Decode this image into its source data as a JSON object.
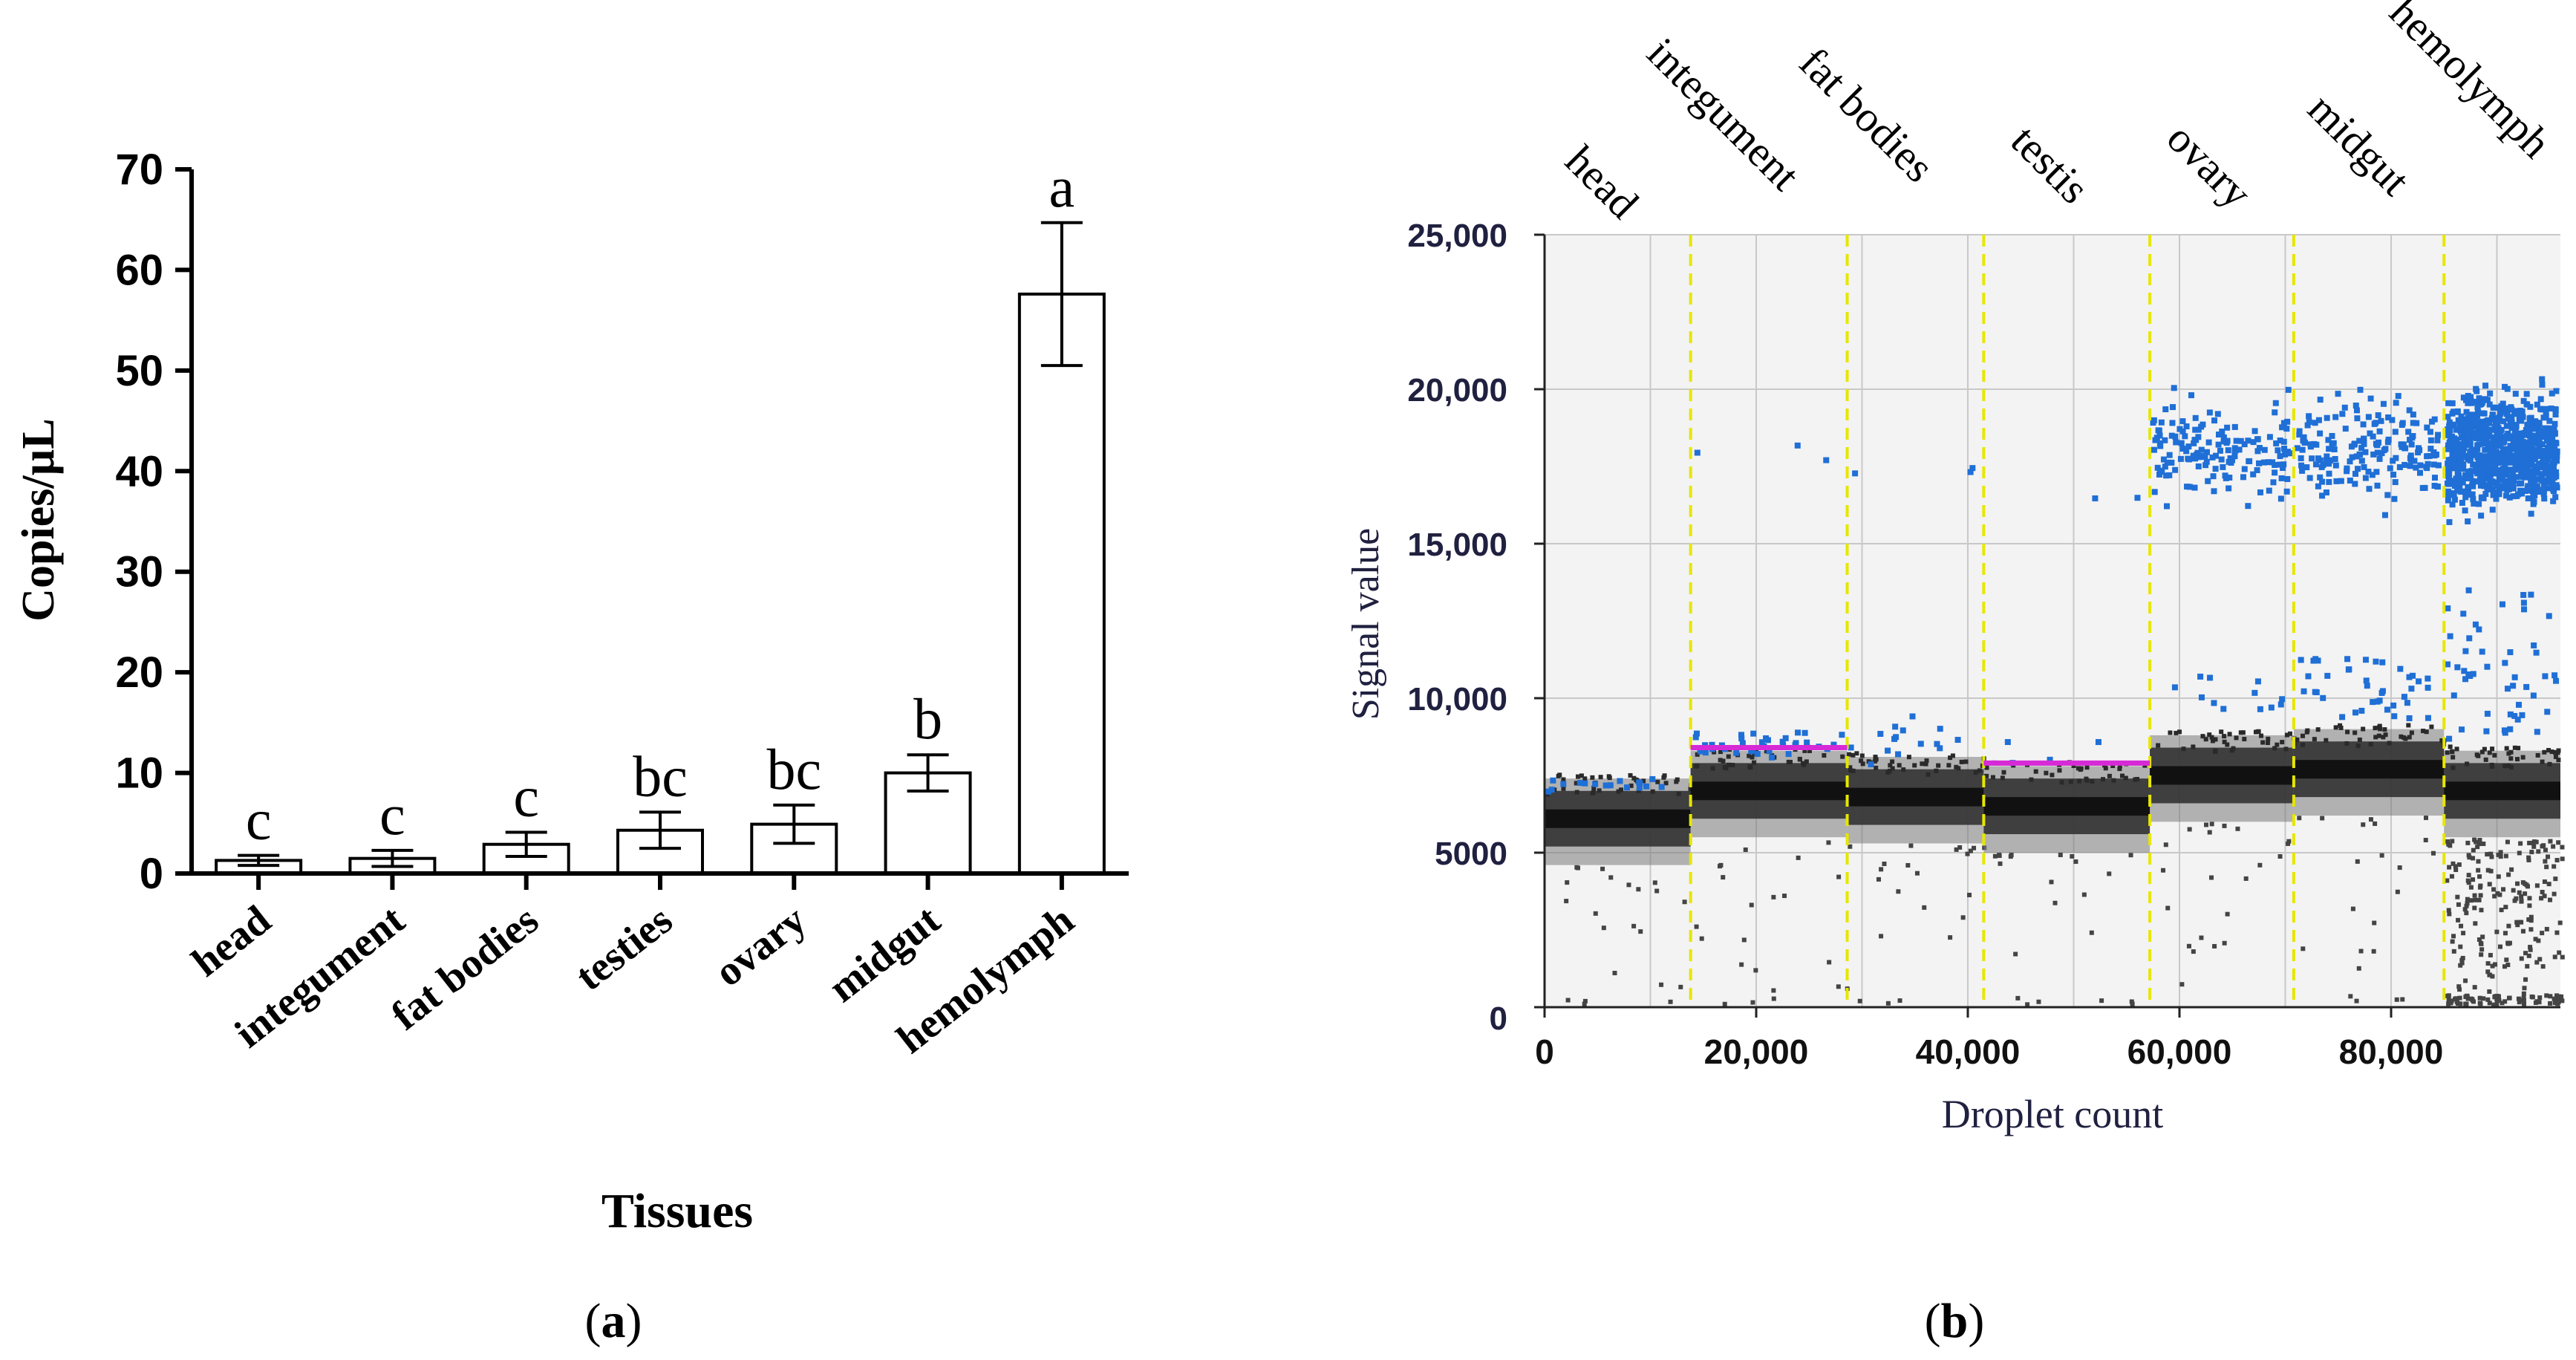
{
  "panel_a": {
    "caption_open": "(",
    "caption_letter": "a",
    "caption_close": ")"
  },
  "panel_b": {
    "caption_open": "(",
    "caption_letter": "b",
    "caption_close": ")"
  },
  "colors": {
    "bar_fill": "#ffffff",
    "bar_stroke": "#000000",
    "positive_droplet": "#1f6fd6",
    "negative_droplet": "#222222",
    "threshold": "#d62ad6",
    "well_divider": "#e6e600",
    "plot_bg": "#f3f3f3",
    "grid": "#c8c8c8",
    "axis_text_b": "#202040"
  },
  "chart_data": [
    {
      "type": "bar",
      "title": "",
      "xlabel": "Tissues",
      "ylabel": "Copies/µL",
      "ylim": [
        0,
        70
      ],
      "yticks": [
        "0",
        "10",
        "20",
        "30",
        "40",
        "50",
        "60",
        "70"
      ],
      "categories": [
        "head",
        "integument",
        "fat bodies",
        "testies",
        "ovary",
        "midgut",
        "hemolymph"
      ],
      "values": [
        1.3,
        1.5,
        2.9,
        4.3,
        4.9,
        10.0,
        57.6
      ],
      "errors": [
        0.5,
        0.8,
        1.2,
        1.8,
        1.9,
        1.8,
        7.1
      ],
      "significance": [
        "c",
        "c",
        "c",
        "bc",
        "bc",
        "b",
        "a"
      ]
    },
    {
      "type": "scatter",
      "title": "",
      "xlabel": "Droplet count",
      "ylabel": "Signal value",
      "xlim": [
        0,
        96000
      ],
      "ylim": [
        0,
        25000
      ],
      "xticks": [
        "0",
        "20,000",
        "40,000",
        "60,000",
        "80,000"
      ],
      "yticks": [
        "0",
        "5000",
        "10,000",
        "15,000",
        "20,000",
        "25,000"
      ],
      "wells": [
        "head",
        "integument",
        "fat bodies",
        "testis",
        "ovary",
        "midgut",
        "hemolymph"
      ],
      "well_boundaries": [
        0,
        13800,
        28600,
        41500,
        57200,
        70800,
        85000,
        96000
      ],
      "negative_level": [
        6100,
        7000,
        6800,
        6500,
        7500,
        7700,
        7000
      ],
      "positive_level": [
        7200,
        8500,
        18000,
        16500,
        18000,
        18200,
        18000
      ],
      "threshold_segments": [
        {
          "x0": 13800,
          "x1": 28600,
          "y": 8400
        },
        {
          "x0": 41500,
          "x1": 57200,
          "y": 7900
        }
      ]
    }
  ]
}
